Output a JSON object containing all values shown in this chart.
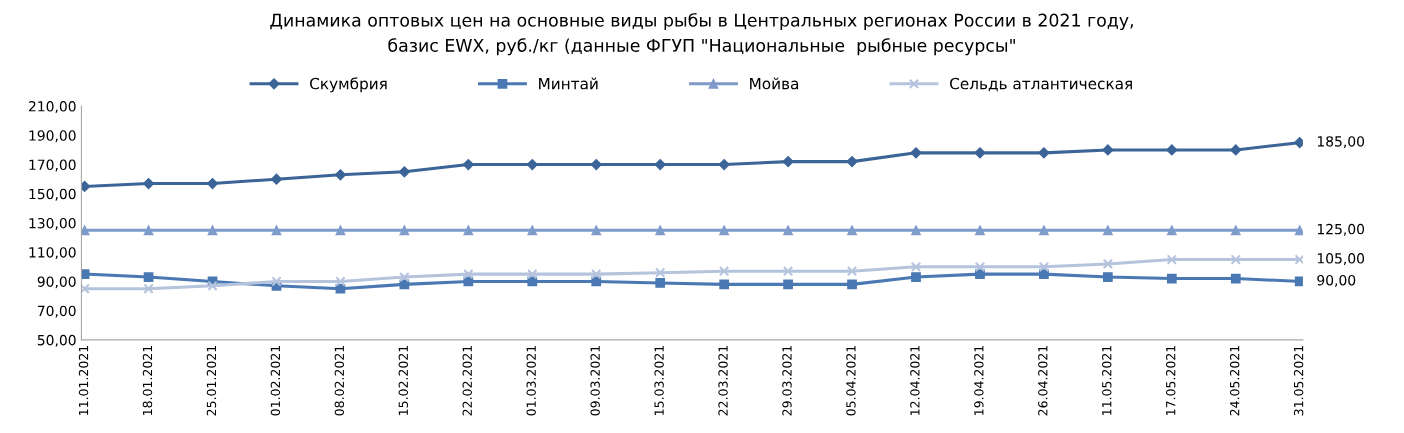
{
  "chart_data": {
    "type": "line",
    "title": "Динамика оптовых цен на основные виды рыбы в Центральных регионах России в 2021 году,\nбазис EWX, руб./кг (данные ФГУП \"Национальные  рыбные ресурсы\"",
    "categories": [
      "11.01.2021",
      "18.01.2021",
      "25.01.2021",
      "01.02.2021",
      "08.02.2021",
      "15.02.2021",
      "22.02.2021",
      "01.03.2021",
      "09.03.2021",
      "15.03.2021",
      "22.03.2021",
      "29.03.2021",
      "05.04.2021",
      "12.04.2021",
      "19.04.2021",
      "26.04.2021",
      "11.05.2021",
      "17.05.2021",
      "24.05.2021",
      "31.05.2021"
    ],
    "series": [
      {
        "name": "Скумбрия",
        "color": "#3b6497",
        "marker": "diamond",
        "values": [
          155,
          157,
          157,
          160,
          163,
          165,
          170,
          170,
          170,
          170,
          170,
          172,
          172,
          178,
          178,
          178,
          180,
          180,
          180,
          185
        ],
        "value_labels": [
          null,
          null,
          null,
          null,
          null,
          null,
          null,
          null,
          null,
          null,
          null,
          null,
          null,
          null,
          null,
          null,
          null,
          null,
          null,
          "185,00"
        ]
      },
      {
        "name": "Минтай",
        "color": "#4a78b3",
        "marker": "square",
        "values": [
          95,
          93,
          90,
          87,
          85,
          88,
          90,
          90,
          90,
          89,
          88,
          88,
          88,
          93,
          95,
          95,
          93,
          92,
          92,
          90
        ],
        "value_labels": [
          null,
          null,
          null,
          null,
          null,
          null,
          null,
          null,
          null,
          null,
          null,
          null,
          null,
          null,
          null,
          null,
          null,
          null,
          null,
          "90,00"
        ]
      },
      {
        "name": "Мойва",
        "color": "#7f9bc9",
        "marker": "triangle",
        "values": [
          125,
          125,
          125,
          125,
          125,
          125,
          125,
          125,
          125,
          125,
          125,
          125,
          125,
          125,
          125,
          125,
          125,
          125,
          125,
          125
        ],
        "value_labels": [
          null,
          null,
          null,
          null,
          null,
          null,
          null,
          null,
          null,
          null,
          null,
          null,
          null,
          null,
          null,
          null,
          null,
          null,
          null,
          "125,00"
        ]
      },
      {
        "name": "Сельдь атлантическая",
        "color": "#b5c3dd",
        "marker": "cross",
        "values": [
          85,
          85,
          87,
          90,
          90,
          93,
          95,
          95,
          95,
          96,
          97,
          97,
          97,
          100,
          100,
          100,
          102,
          105,
          105,
          105
        ],
        "value_labels": [
          null,
          null,
          null,
          null,
          null,
          null,
          null,
          null,
          null,
          null,
          null,
          null,
          null,
          null,
          null,
          null,
          null,
          null,
          null,
          "105,00"
        ]
      }
    ],
    "ylim": [
      50,
      210
    ],
    "yticks": [
      {
        "value": 50,
        "label": "50,00"
      },
      {
        "value": 70,
        "label": "70,00"
      },
      {
        "value": 90,
        "label": "90,00"
      },
      {
        "value": 110,
        "label": "110,00"
      },
      {
        "value": 130,
        "label": "130,00"
      },
      {
        "value": 150,
        "label": "150,00"
      },
      {
        "value": 170,
        "label": "170,00"
      },
      {
        "value": 190,
        "label": "190,00"
      },
      {
        "value": 210,
        "label": "210,00"
      }
    ],
    "grid": false,
    "legend": "top",
    "line_style": "solid"
  }
}
